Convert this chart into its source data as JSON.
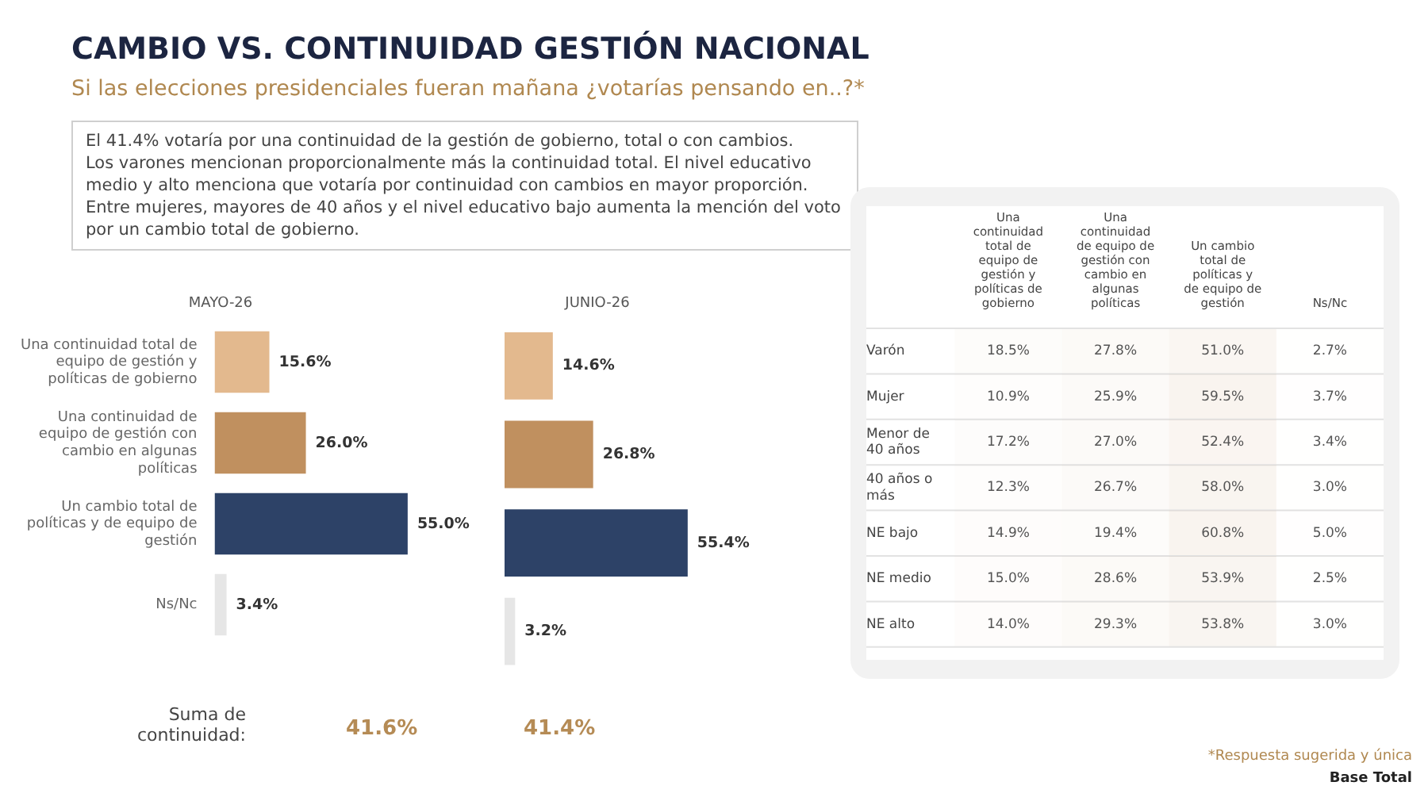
{
  "chart_data": [
    {
      "type": "other",
      "title": "CAMBIO VS. CONTINUIDAD GESTIÓN NACIONAL",
      "subtitle": "Si las elecciones presidenciales fueran mañana ¿votarías pensando en..?*",
      "annotations": [
        "El 41.4% votaría por una continuidad de la gestión de gobierno, total o con cambios.",
        "Los varones mencionan proporcionalmente más la continuidad total. El nivel educativo medio y alto menciona que votaría por continuidad con cambios en mayor proporción.",
        "Entre mujeres, mayores de 40 años y el nivel educativo bajo aumenta la mención del voto por un cambio total de gobierno.",
        "Suma de continuidad:",
        "41.6%",
        "41.4%",
        "*Respuesta sugerida y única",
        "Base Total"
      ]
    },
    {
      "type": "bar",
      "orientation": "horizontal",
      "title": "MAYO-26",
      "tick_labels": "y",
      "categories": [
        "Una continuidad total de equipo de gestión y políticas de gobierno",
        "Una continuidad de equipo de gestión con cambio en algunas políticas",
        "Un cambio total de políticas y de equipo de gestión",
        "Ns/Nc"
      ],
      "values": [
        15.6,
        26.0,
        55.0,
        3.4
      ],
      "value_labels": [
        "15.6%",
        "26.0%",
        "55.0%",
        "3.4%"
      ],
      "colors": [
        "#e3b98e",
        "#c0905f",
        "#2d4267",
        "#e6e6e6"
      ]
    },
    {
      "type": "bar",
      "orientation": "horizontal",
      "title": "JUNIO-26",
      "tick_labels": false,
      "categories": [
        null,
        null,
        null,
        null
      ],
      "values": [
        14.6,
        26.8,
        55.4,
        3.2
      ],
      "value_labels": [
        "14.6%",
        "26.8%",
        "55.4%",
        "3.2%"
      ],
      "colors": [
        "#e3b98e",
        "#c0905f",
        "#2d4267",
        "#e6e6e6"
      ]
    },
    {
      "type": "heatmap",
      "categories": [
        "Una continuidad total de equipo de gestión y políticas de gobierno",
        "Una continuidad de equipo de gestión con cambio en algunas políticas",
        "Un cambio total de políticas y de equipo de gestión",
        "Ns/Nc"
      ],
      "y_categories": [
        "Varón",
        "Mujer",
        "Menor de 40 años",
        "40 años o más",
        "NE bajo",
        "NE medio",
        "NE alto"
      ],
      "cells": [
        [
          18.5,
          27.8,
          51.0,
          2.7
        ],
        [
          10.9,
          25.9,
          59.5,
          3.7
        ],
        [
          17.2,
          27.0,
          52.4,
          3.4
        ],
        [
          12.3,
          26.7,
          58.0,
          3.0
        ],
        [
          14.9,
          19.4,
          60.8,
          5.0
        ],
        [
          15.0,
          28.6,
          53.9,
          2.5
        ],
        [
          14.0,
          29.3,
          53.8,
          3.0
        ]
      ],
      "cell_labels": [
        [
          "18.5%",
          "27.8%",
          "51.0%",
          "2.7%"
        ],
        [
          "10.9%",
          "25.9%",
          "59.5%",
          "3.7%"
        ],
        [
          "17.2%",
          "27.0%",
          "52.4%",
          "3.4%"
        ],
        [
          "12.3%",
          "26.7%",
          "58.0%",
          "3.0%"
        ],
        [
          "14.9%",
          "19.4%",
          "60.8%",
          "5.0%"
        ],
        [
          "15.0%",
          "28.6%",
          "53.9%",
          "2.5%"
        ],
        [
          "14.0%",
          "29.3%",
          "53.8%",
          "3.0%"
        ]
      ]
    }
  ]
}
